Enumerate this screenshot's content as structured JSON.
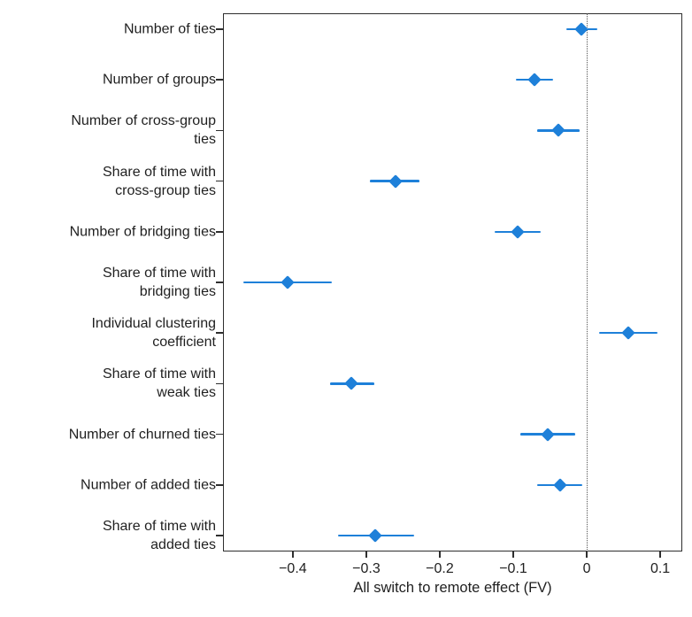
{
  "chart_data": {
    "type": "scatter",
    "subtype": "dot-whisker-coefficient-plot",
    "title": "",
    "xlabel": "All switch to remote effect (FV)",
    "ylabel": "",
    "xlim": [
      -0.495,
      0.13
    ],
    "x_ticks": [
      -0.4,
      -0.3,
      -0.2,
      -0.1,
      0,
      0.1
    ],
    "x_tick_labels": [
      "−0.4",
      "−0.3",
      "−0.2",
      "−0.1",
      "0",
      "0.1"
    ],
    "reference_line_x": 0,
    "grid": false,
    "legend": false,
    "marker": "diamond",
    "categories": [
      "Number of ties",
      "Number of groups",
      "Number of cross-group ties",
      "Share of time with cross-group ties",
      "Number of bridging ties",
      "Share of time with bridging ties",
      "Individual clustering coefficient",
      "Share of time with weak ties",
      "Number of churned ties",
      "Number of added ties",
      "Share of time with added ties"
    ],
    "category_label_lines": [
      [
        "Number of ties"
      ],
      [
        "Number of groups"
      ],
      [
        "Number of cross-group",
        "ties"
      ],
      [
        "Share of time with",
        "cross-group ties"
      ],
      [
        "Number of bridging ties"
      ],
      [
        "Share of time with",
        "bridging ties"
      ],
      [
        "Individual clustering",
        "coefficient"
      ],
      [
        "Share of time with",
        "weak ties"
      ],
      [
        "Number of churned ties"
      ],
      [
        "Number of added ties"
      ],
      [
        "Share of time with",
        "added ties"
      ]
    ],
    "series": [
      {
        "name": "All switch to remote effect (FV)",
        "estimates": [
          -0.007,
          -0.071,
          -0.039,
          -0.26,
          -0.094,
          -0.407,
          0.056,
          -0.32,
          -0.053,
          -0.036,
          -0.288
        ],
        "ci_low": [
          -0.028,
          -0.096,
          -0.067,
          -0.295,
          -0.125,
          -0.467,
          0.017,
          -0.349,
          -0.09,
          -0.067,
          -0.339
        ],
        "ci_high": [
          0.014,
          -0.046,
          -0.01,
          -0.228,
          -0.063,
          -0.347,
          0.096,
          -0.289,
          -0.016,
          -0.006,
          -0.235
        ]
      }
    ]
  },
  "colors": {
    "marker": "#1e80d9",
    "axis": "#2e2e2e",
    "text": "#1f1f1f",
    "reference_line": "#555555",
    "background": "#ffffff"
  }
}
